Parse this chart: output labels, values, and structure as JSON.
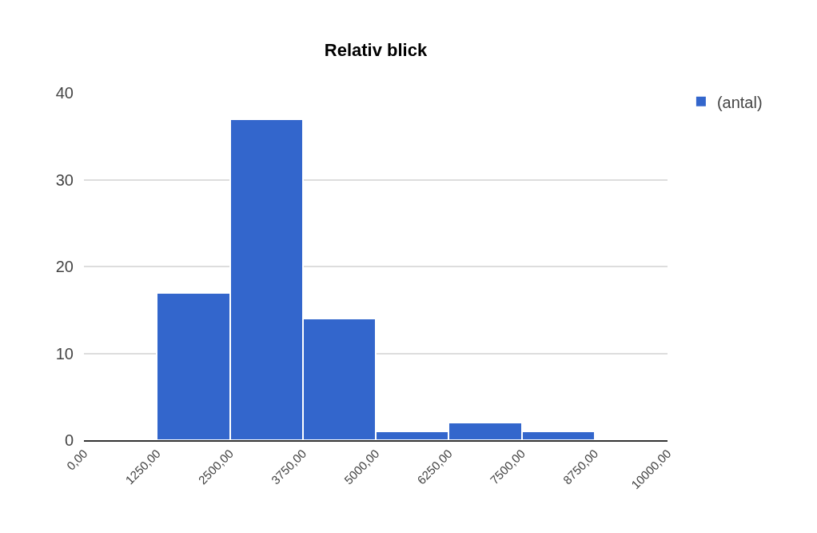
{
  "chart_data": {
    "type": "histogram",
    "title": "Relativ blick",
    "bins": [
      0,
      1250,
      2500,
      3750,
      5000,
      6250,
      7500,
      8750,
      10000
    ],
    "series": [
      {
        "name": "(antal)",
        "color": "#3366cc",
        "values": [
          0,
          17,
          37,
          14,
          1,
          2,
          1,
          0
        ]
      }
    ],
    "xlim": [
      0,
      10000
    ],
    "xticks": [
      {
        "value": 0,
        "label": "0,00"
      },
      {
        "value": 1250,
        "label": "1250,00"
      },
      {
        "value": 2500,
        "label": "2500,00"
      },
      {
        "value": 3750,
        "label": "3750,00"
      },
      {
        "value": 5000,
        "label": "5000,00"
      },
      {
        "value": 6250,
        "label": "6250,00"
      },
      {
        "value": 7500,
        "label": "7500,00"
      },
      {
        "value": 8750,
        "label": "8750,00"
      },
      {
        "value": 10000,
        "label": "10000,00"
      }
    ],
    "ylim": [
      0,
      40
    ],
    "yticks": [
      0,
      10,
      20,
      30,
      40
    ],
    "grid": "y",
    "legend": "top right"
  }
}
